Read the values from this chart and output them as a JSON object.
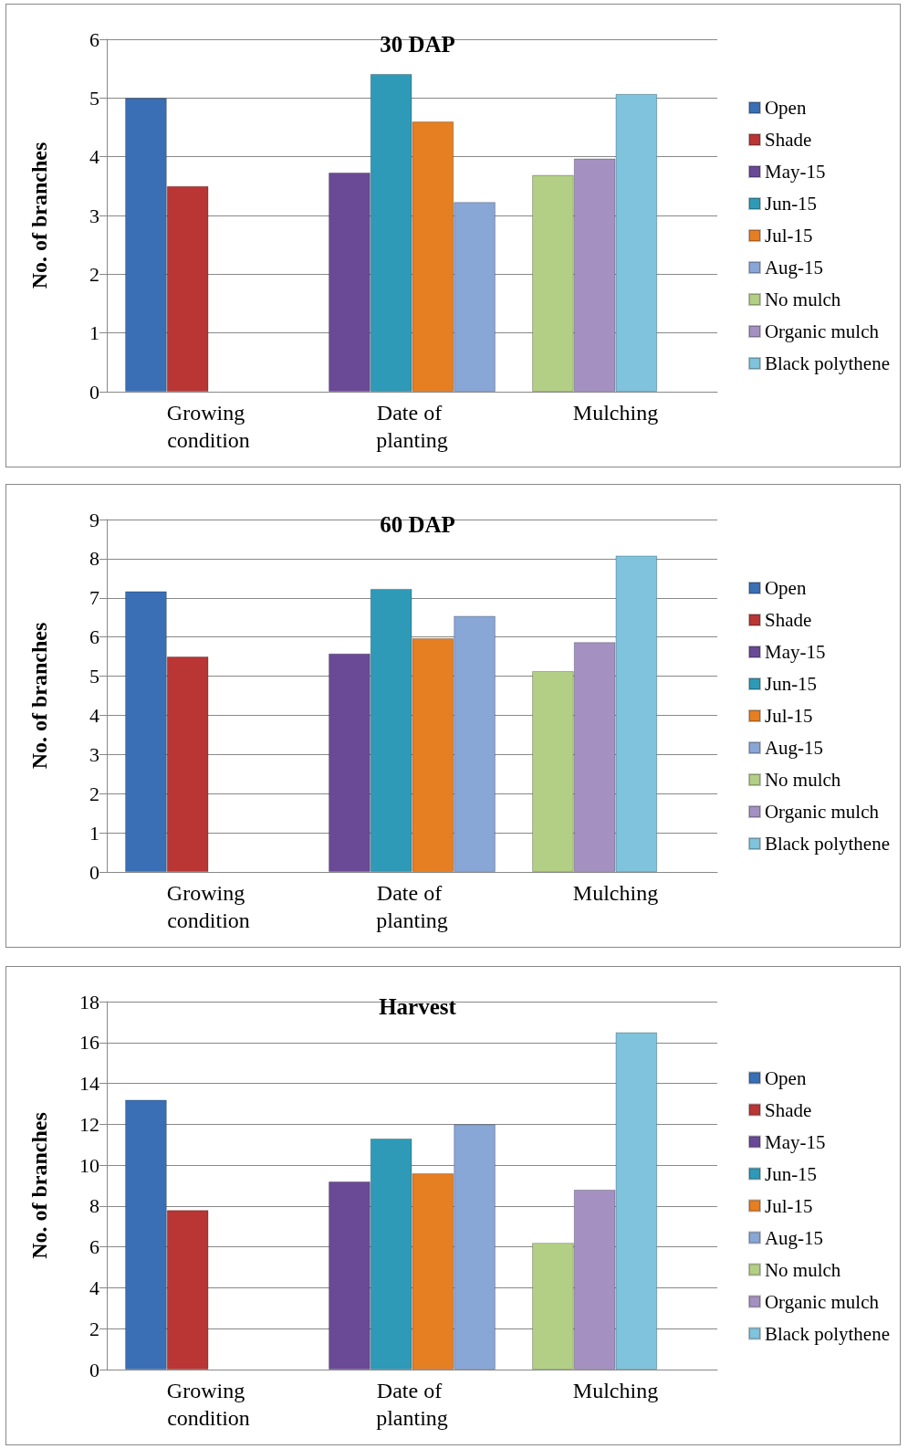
{
  "chart_data": [
    {
      "type": "bar",
      "title": "30 DAP",
      "ylabel": "No. of branches",
      "categories": [
        "Growing condition",
        "Date of planting",
        "Mulching"
      ],
      "ylim": [
        0,
        6
      ],
      "yticks": [
        0,
        1,
        2,
        3,
        4,
        5,
        6
      ],
      "grid": "y",
      "legend": "right",
      "series": [
        {
          "name": "Open",
          "color": "#3a6fb5",
          "values": [
            5.0,
            null,
            null
          ]
        },
        {
          "name": "Shade",
          "color": "#b93635",
          "values": [
            3.5,
            null,
            null
          ]
        },
        {
          "name": "May-15",
          "color": "#6a4a96",
          "values": [
            null,
            3.73,
            null
          ]
        },
        {
          "name": "Jun-15",
          "color": "#2e9ab8",
          "values": [
            null,
            5.41,
            null
          ]
        },
        {
          "name": "Jul-15",
          "color": "#e67e22",
          "values": [
            null,
            4.6,
            null
          ]
        },
        {
          "name": "Aug-15",
          "color": "#88a6d6",
          "values": [
            null,
            3.23,
            null
          ]
        },
        {
          "name": "No mulch",
          "color": "#b3cf85",
          "values": [
            null,
            null,
            3.69
          ]
        },
        {
          "name": "Organic mulch",
          "color": "#a491c2",
          "values": [
            null,
            null,
            3.97
          ]
        },
        {
          "name": "Black polythene",
          "color": "#7fc3dc",
          "values": [
            null,
            null,
            5.07
          ]
        }
      ]
    },
    {
      "type": "bar",
      "title": "60 DAP",
      "ylabel": "No. of branches",
      "categories": [
        "Growing condition",
        "Date of planting",
        "Mulching"
      ],
      "ylim": [
        0,
        9
      ],
      "yticks": [
        0,
        1,
        2,
        3,
        4,
        5,
        6,
        7,
        8,
        9
      ],
      "grid": "y",
      "legend": "right",
      "series": [
        {
          "name": "Open",
          "color": "#3a6fb5",
          "values": [
            7.17,
            null,
            null
          ]
        },
        {
          "name": "Shade",
          "color": "#b93635",
          "values": [
            5.5,
            null,
            null
          ]
        },
        {
          "name": "May-15",
          "color": "#6a4a96",
          "values": [
            null,
            5.58,
            null
          ]
        },
        {
          "name": "Jun-15",
          "color": "#2e9ab8",
          "values": [
            null,
            7.23,
            null
          ]
        },
        {
          "name": "Jul-15",
          "color": "#e67e22",
          "values": [
            null,
            5.97,
            null
          ]
        },
        {
          "name": "Aug-15",
          "color": "#88a6d6",
          "values": [
            null,
            6.54,
            null
          ]
        },
        {
          "name": "No mulch",
          "color": "#b3cf85",
          "values": [
            null,
            null,
            5.13
          ]
        },
        {
          "name": "Organic mulch",
          "color": "#a491c2",
          "values": [
            null,
            null,
            5.87
          ]
        },
        {
          "name": "Black polythene",
          "color": "#7fc3dc",
          "values": [
            null,
            null,
            8.08
          ]
        }
      ]
    },
    {
      "type": "bar",
      "title": "Harvest",
      "ylabel": "No. of branches",
      "categories": [
        "Growing condition",
        "Date of planting",
        "Mulching"
      ],
      "ylim": [
        0,
        18
      ],
      "yticks": [
        0,
        2,
        4,
        6,
        8,
        10,
        12,
        14,
        16,
        18
      ],
      "grid": "y",
      "legend": "right",
      "series": [
        {
          "name": "Open",
          "color": "#3a6fb5",
          "values": [
            13.2,
            null,
            null
          ]
        },
        {
          "name": "Shade",
          "color": "#b93635",
          "values": [
            7.8,
            null,
            null
          ]
        },
        {
          "name": "May-15",
          "color": "#6a4a96",
          "values": [
            null,
            9.2,
            null
          ]
        },
        {
          "name": "Jun-15",
          "color": "#2e9ab8",
          "values": [
            null,
            11.3,
            null
          ]
        },
        {
          "name": "Jul-15",
          "color": "#e67e22",
          "values": [
            null,
            9.6,
            null
          ]
        },
        {
          "name": "Aug-15",
          "color": "#88a6d6",
          "values": [
            null,
            12.0,
            null
          ]
        },
        {
          "name": "No mulch",
          "color": "#b3cf85",
          "values": [
            null,
            null,
            6.2
          ]
        },
        {
          "name": "Organic mulch",
          "color": "#a491c2",
          "values": [
            null,
            null,
            8.8
          ]
        },
        {
          "name": "Black polythene",
          "color": "#7fc3dc",
          "values": [
            null,
            null,
            16.5
          ]
        }
      ]
    }
  ]
}
